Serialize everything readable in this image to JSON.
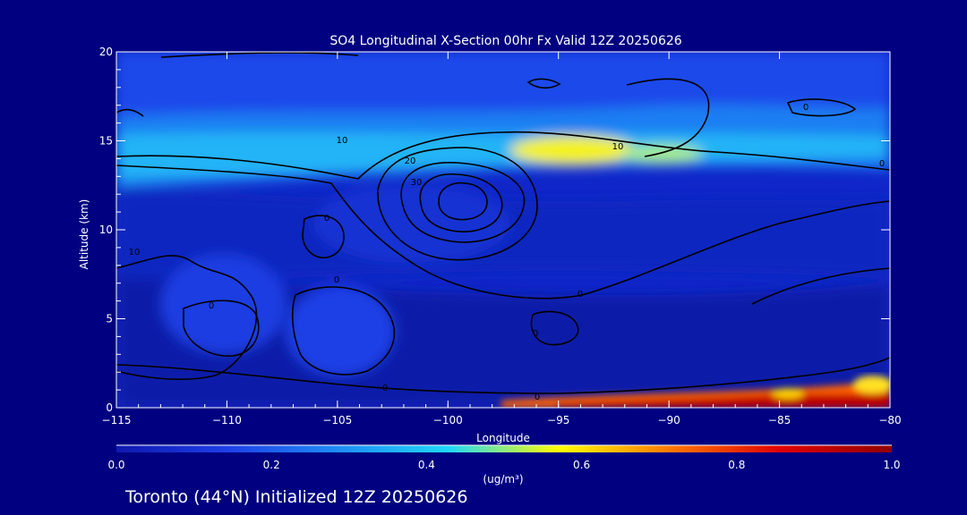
{
  "chart_data": {
    "type": "heatmap",
    "title": "SO4 Longitudinal X-Section 00hr  Fx Valid 12Z 20250626",
    "xlabel": "Longitude",
    "ylabel": "Altitude (km)",
    "xlim": [
      -115,
      -80
    ],
    "ylim": [
      0,
      20
    ],
    "x_ticks": [
      -115,
      -110,
      -105,
      -100,
      -95,
      -90,
      -85,
      -80
    ],
    "y_ticks": [
      0,
      5,
      10,
      15,
      20
    ],
    "colorbar": {
      "label": "(ug/m³)",
      "ticks": [
        0.0,
        0.2,
        0.4,
        0.6,
        0.8,
        1.0
      ],
      "tick_labels": [
        "0.0",
        "0.2",
        "0.4",
        "0.6",
        "0.8",
        "1.0"
      ],
      "stops": [
        "#1018b0",
        "#1e3fe8",
        "#1f8cf5",
        "#20d8f8",
        "#ffff00",
        "#ff7800",
        "#e00000",
        "#900000"
      ]
    },
    "contour_labels": [
      "10",
      "20",
      "30",
      "10",
      "0",
      "0",
      "10",
      "0",
      "0",
      "0",
      "0",
      "0",
      "0",
      "0"
    ],
    "footer": "Toronto (44°N) Initialized 12Z 20250626"
  }
}
